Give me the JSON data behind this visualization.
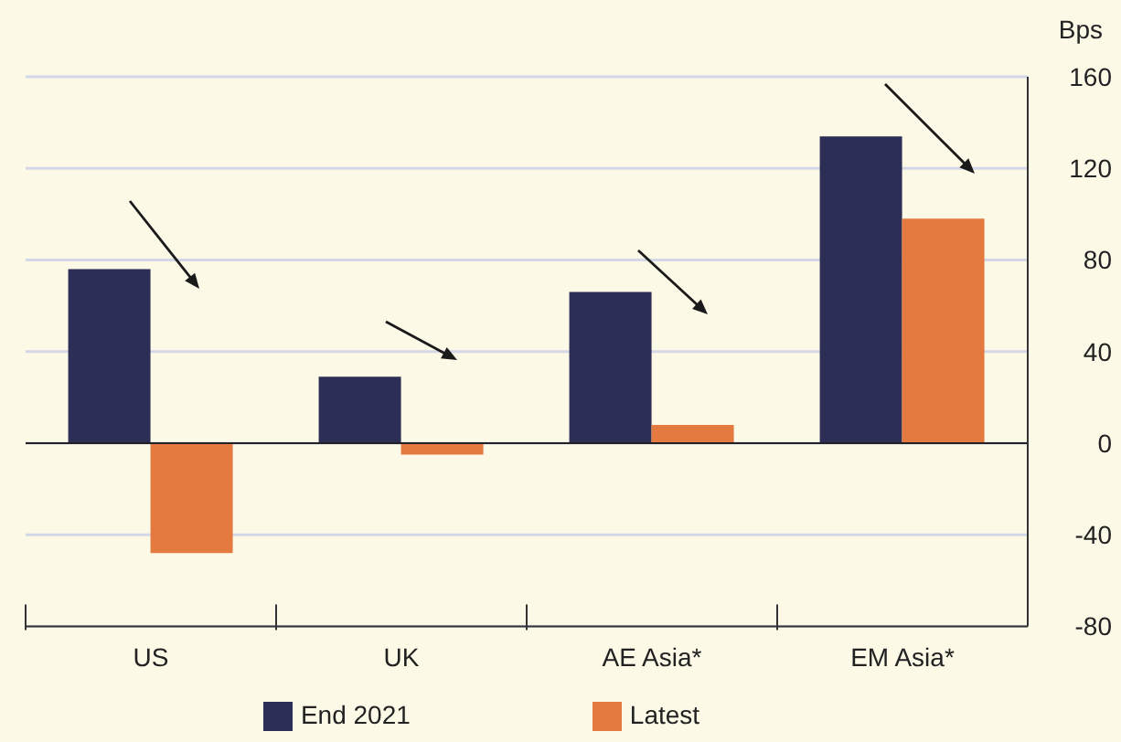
{
  "chart_data": {
    "type": "bar",
    "categories": [
      "US",
      "UK",
      "AE Asia*",
      "EM Asia*"
    ],
    "series": [
      {
        "name": "End 2021",
        "color": "#2d2e55",
        "values": [
          76,
          29,
          66,
          134
        ]
      },
      {
        "name": "Latest",
        "color": "#e47a40",
        "values": [
          -48,
          -5,
          8,
          98
        ]
      }
    ],
    "ylabel": "Bps",
    "ylim": [
      -80,
      160
    ],
    "yticks": [
      -80,
      -40,
      0,
      40,
      80,
      120,
      160
    ],
    "grid": "y",
    "legend": "bottom",
    "ref_lines": [
      {
        "axis": "y",
        "value": 0,
        "color": "#222222"
      }
    ]
  }
}
